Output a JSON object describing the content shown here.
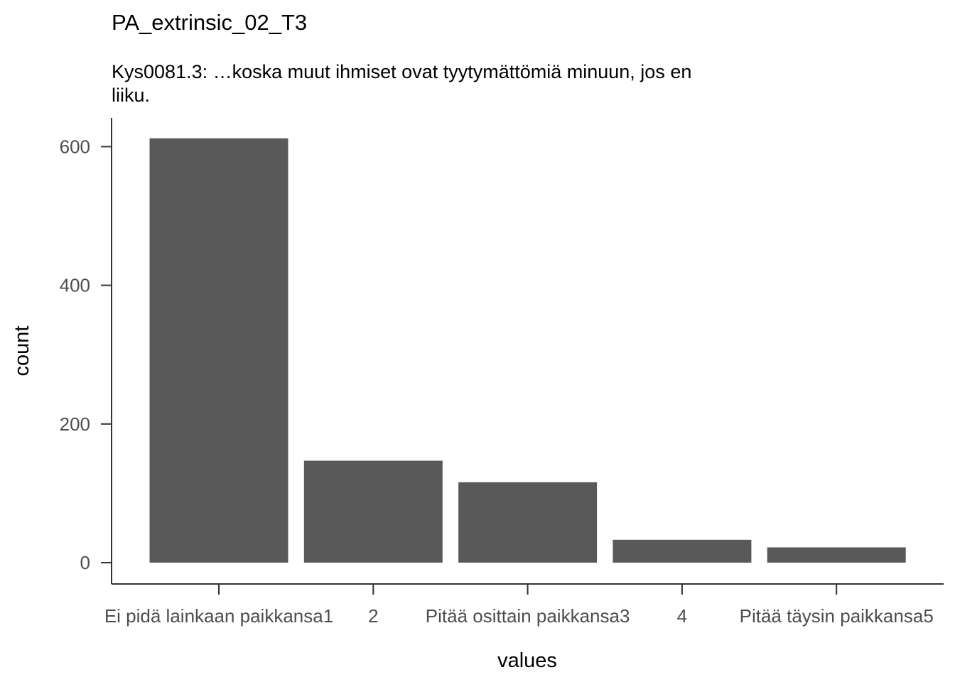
{
  "chart_data": {
    "type": "bar",
    "title": "PA_extrinsic_02_T3",
    "subtitle_lines": [
      "Kys0081.3: …koska muut ihmiset ovat tyytymättömiä minuun, jos en",
      "liiku."
    ],
    "xlabel": "values",
    "ylabel": "count",
    "categories": [
      "Ei pidä lainkaan paikkansa1",
      "2",
      "Pitää osittain paikkansa3",
      "4",
      "Pitää täysin paikkansa5"
    ],
    "values": [
      612,
      147,
      116,
      33,
      22
    ],
    "ylim": [
      0,
      640
    ],
    "yticks": [
      0,
      200,
      400,
      600
    ],
    "ytick_labels": [
      "0",
      "200",
      "400",
      "600"
    ],
    "grid": false,
    "legend": "none",
    "colors": {
      "bar": "#595959",
      "axis": "#333333",
      "tick_text": "#4d4d4d",
      "text": "#000000"
    }
  }
}
